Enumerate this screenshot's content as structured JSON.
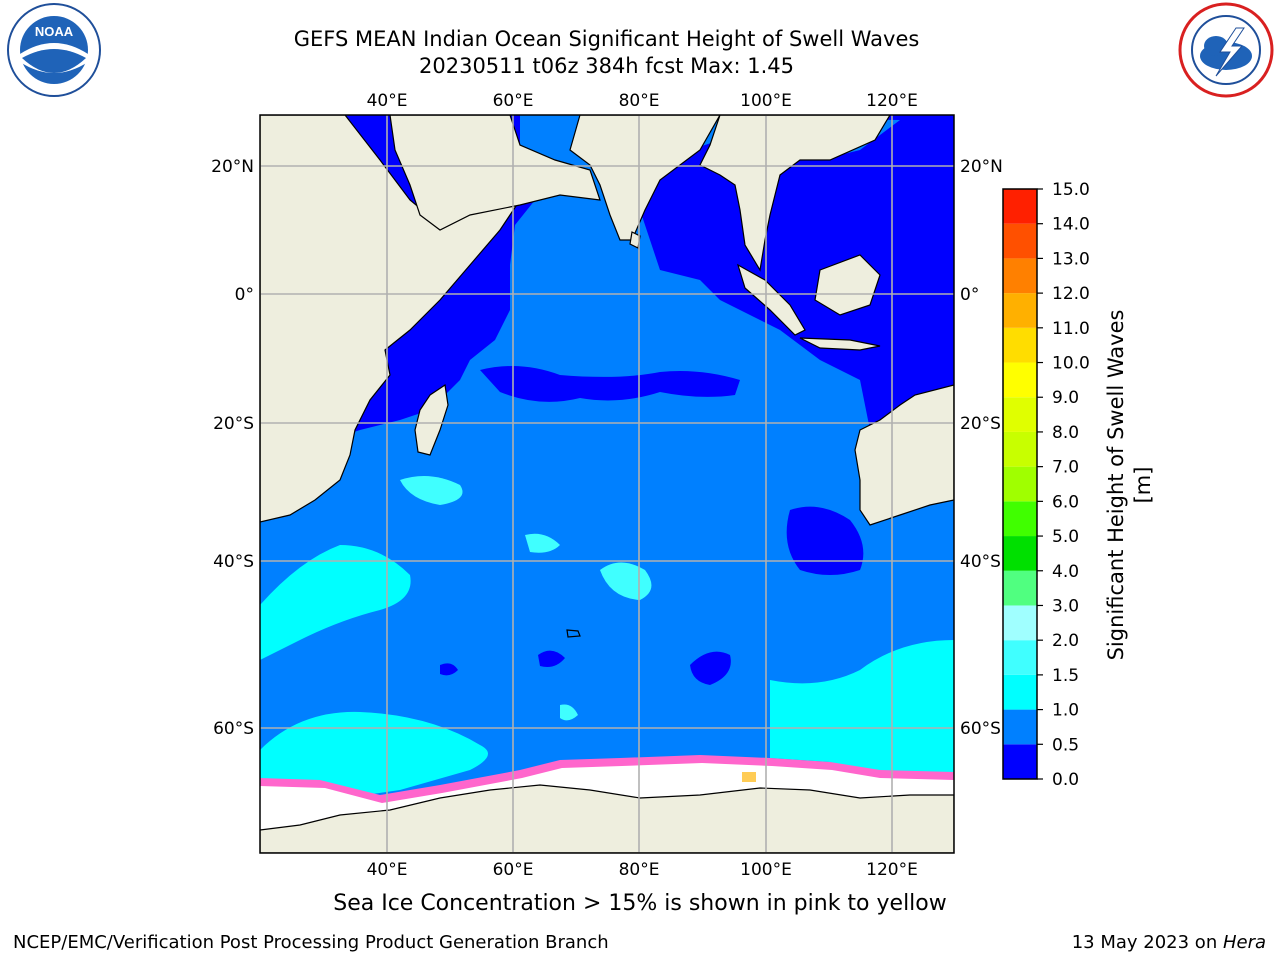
{
  "title": {
    "line1": "GEFS MEAN Indian Ocean Significant Height of Swell Waves",
    "line2": "20230511 t06z 384h fcst   Max: 1.45"
  },
  "map": {
    "lon_labels": [
      "40°E",
      "60°E",
      "80°E",
      "100°E",
      "120°E"
    ],
    "lat_labels": [
      "20°N",
      "0°",
      "20°S",
      "40°S",
      "60°S"
    ]
  },
  "colorbar": {
    "label": "Significant Height of Swell Waves [m]",
    "ticks": [
      "0.0",
      "0.5",
      "1.0",
      "1.5",
      "2.0",
      "3.0",
      "4.0",
      "5.0",
      "6.0",
      "7.0",
      "8.0",
      "9.0",
      "10.0",
      "11.0",
      "12.0",
      "13.0",
      "14.0",
      "15.0"
    ],
    "colors": [
      "#0000ff",
      "#0080ff",
      "#00ffff",
      "#40ffff",
      "#a0ffff",
      "#50ff80",
      "#00e000",
      "#40ff00",
      "#a0ff00",
      "#c8ff00",
      "#e0ff00",
      "#ffff00",
      "#ffdd00",
      "#ffb000",
      "#ff8000",
      "#ff5000",
      "#ff2000",
      "#ff0000"
    ]
  },
  "caption": "Sea Ice Concentration > 15% is shown in pink to yellow",
  "footer": {
    "left": "NCEP/EMC/Verification Post Processing Product Generation Branch",
    "right_prefix": "13 May 2023 on ",
    "right_host": "Hera"
  },
  "colors": {
    "land": "#eeeede",
    "ocean_main": "#0080ff",
    "ocean_low": "#0000ff",
    "swell_high": "#00ffff",
    "ice": "#ffffff",
    "ice_edge": "#ff66cc"
  }
}
